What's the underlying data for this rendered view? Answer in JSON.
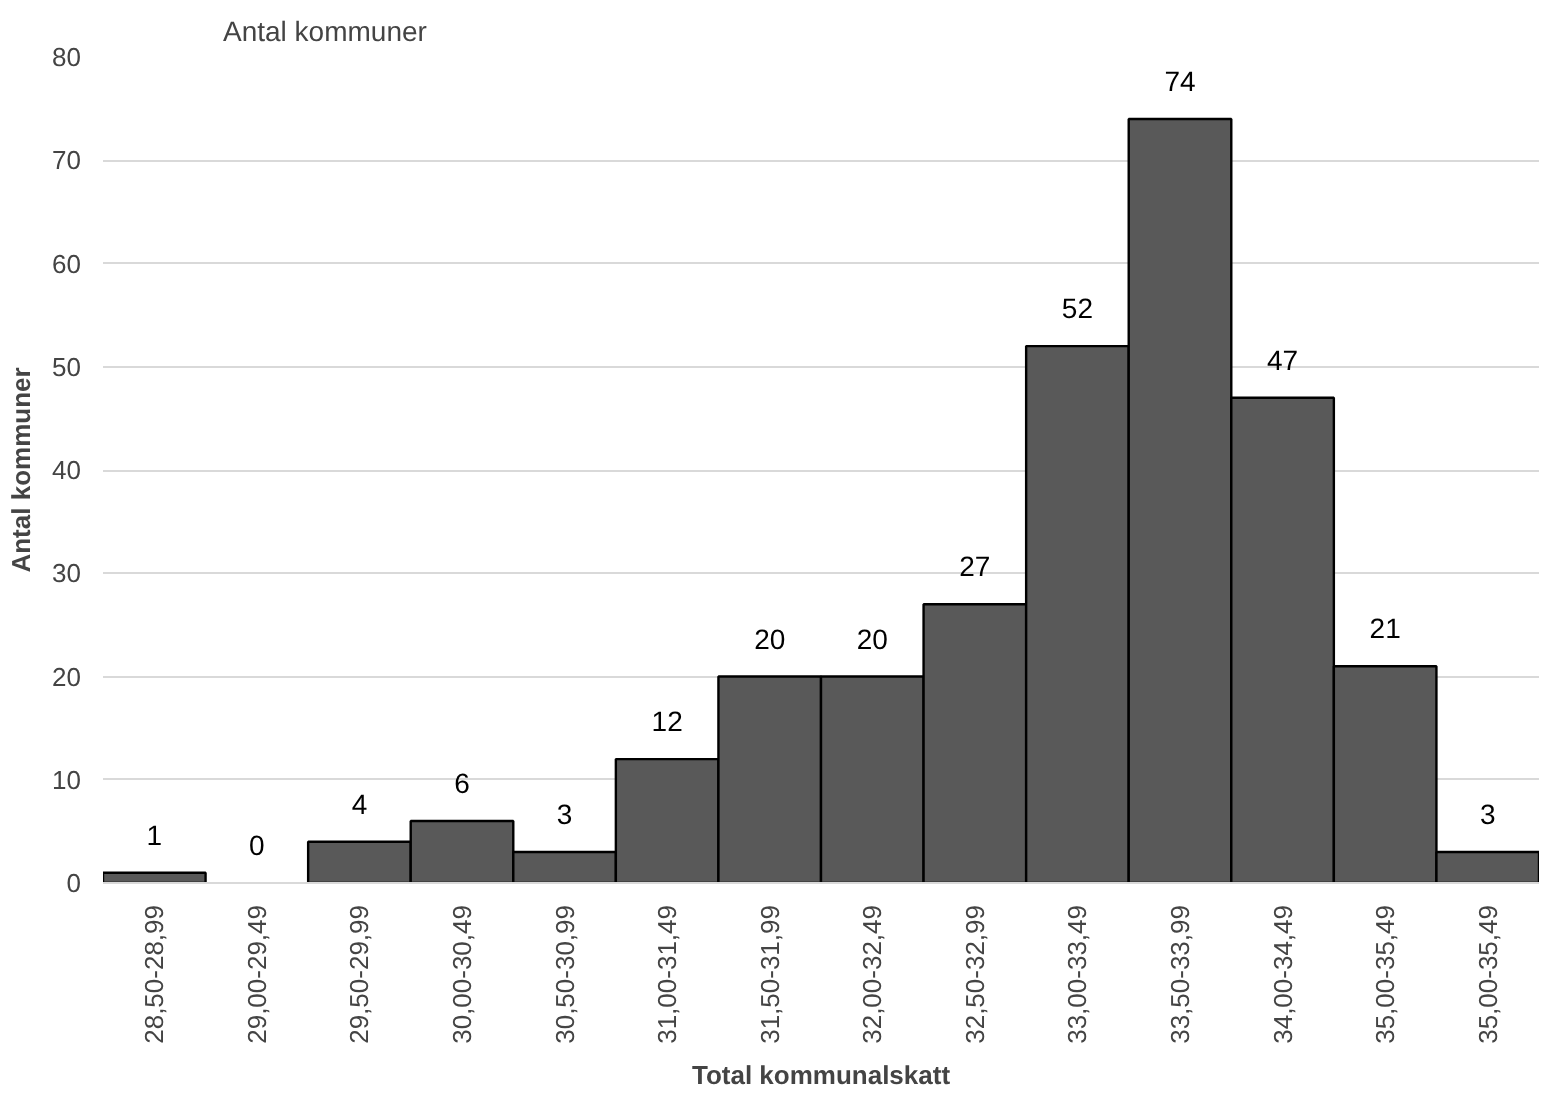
{
  "chart_data": {
    "type": "bar",
    "title": "Antal kommuner",
    "xlabel": "Total kommunalskatt",
    "ylabel": "Antal kommuner",
    "categories": [
      "28,50-28,99",
      "29,00-29,49",
      "29,50-29,99",
      "30,00-30,49",
      "30,50-30,99",
      "31,00-31,49",
      "31,50-31,99",
      "32,00-32,49",
      "32,50-32,99",
      "33,00-33,49",
      "33,50-33,99",
      "34,00-34,49",
      "35,00-35,49",
      "35,00-35,49"
    ],
    "values": [
      1,
      0,
      4,
      6,
      3,
      12,
      20,
      20,
      27,
      52,
      74,
      47,
      21,
      3
    ],
    "color": "#595959",
    "ylim": [
      0,
      80
    ],
    "yticks": [
      0,
      10,
      20,
      30,
      40,
      50,
      60,
      70,
      80
    ],
    "grid": "y",
    "data_labels": true
  }
}
